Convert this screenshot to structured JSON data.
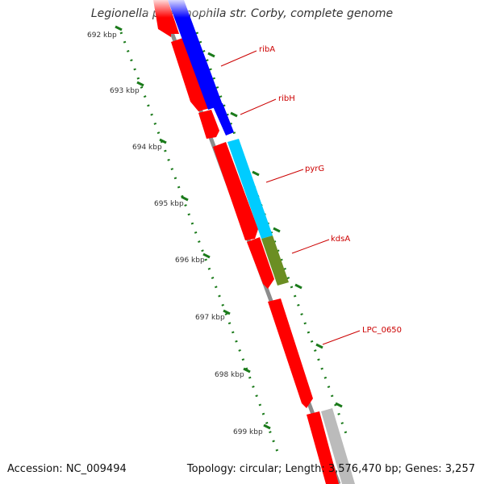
{
  "title": "Legionella pneumophila str. Corby, complete genome",
  "footer": {
    "accession": "Accession: NC_009494",
    "summary": "Topology: circular; Length: 3,576,470 bp; Genes: 3,257"
  },
  "ruler": {
    "labels": [
      "692 kbp",
      "693 kbp",
      "694 kbp",
      "695 kbp",
      "696 kbp",
      "697 kbp",
      "698 kbp",
      "699 kbp"
    ]
  },
  "gene_labels": [
    "ribA",
    "ribH",
    "pyrG",
    "kdsA",
    "LPC_0650"
  ],
  "colors": {
    "forward_strand": "#ff0000",
    "ribA": "#0000ff",
    "pyrG": "#00ccff",
    "kdsA": "#6b8e23",
    "other_gene": "#bbbbbb",
    "label_text": "#cc0000",
    "ruler_ticks": "#1a7a1a",
    "backbone": "#8c8c8c"
  }
}
